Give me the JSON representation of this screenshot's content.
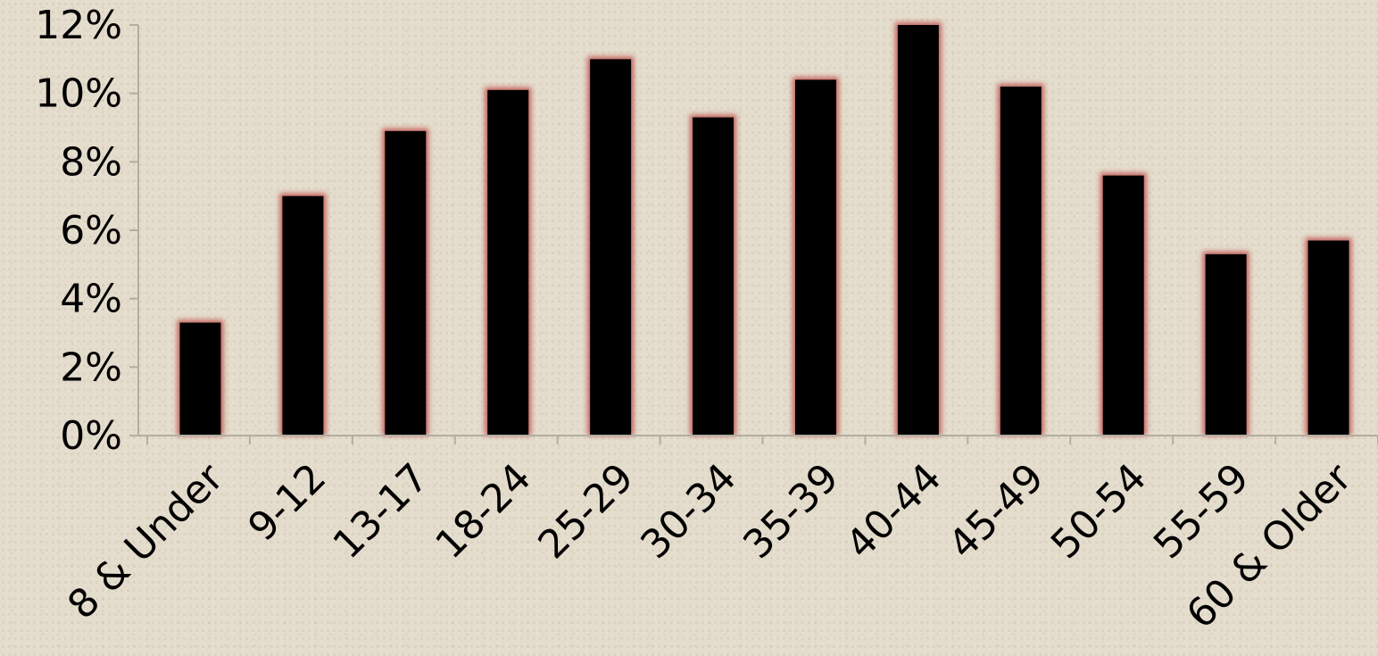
{
  "chart_data": {
    "type": "bar",
    "categories": [
      "8 & Under",
      "9-12",
      "13-17",
      "18-24",
      "25-29",
      "30-34",
      "35-39",
      "40-44",
      "45-49",
      "50-54",
      "55-59",
      "60 & Older"
    ],
    "values": [
      3.3,
      7.0,
      8.9,
      10.1,
      11.0,
      9.3,
      10.4,
      12.0,
      10.2,
      7.6,
      5.3,
      5.7
    ],
    "ylim": [
      0,
      12
    ],
    "yticks": [
      0,
      2,
      4,
      6,
      8,
      10,
      12
    ],
    "ytick_labels": [
      "0%",
      "2%",
      "4%",
      "6%",
      "8%",
      "10%",
      "12%"
    ],
    "title": "",
    "xlabel": "",
    "ylabel": "",
    "grid": false,
    "legend": "none",
    "colors": {
      "bar_fill": "#000000",
      "bar_glow": "#c0504d",
      "axis": "#b3ada2",
      "background": "#e4dccc"
    }
  }
}
